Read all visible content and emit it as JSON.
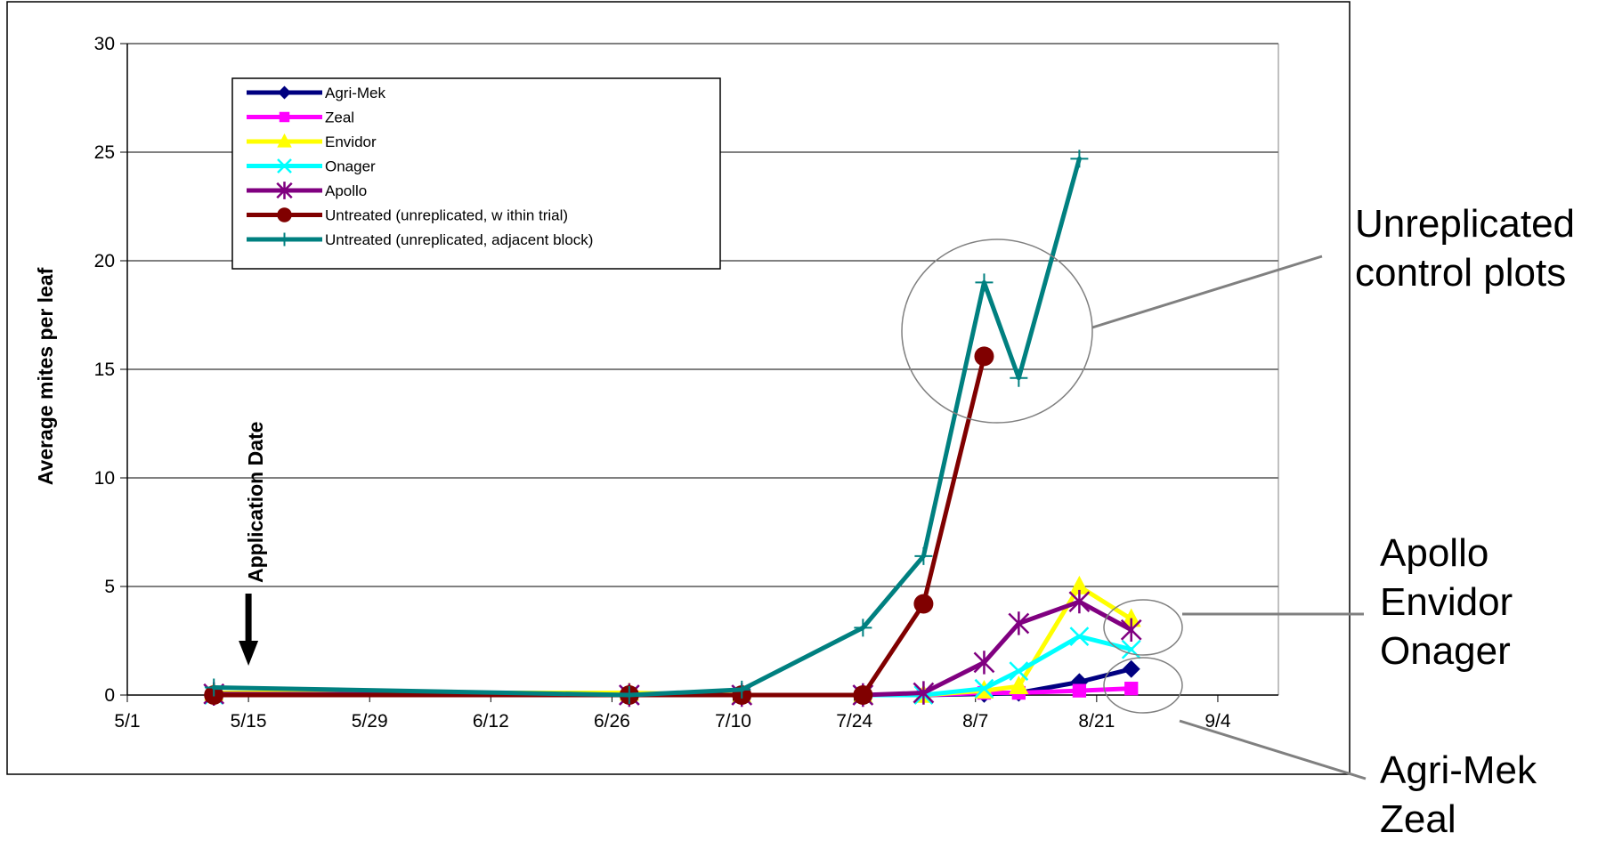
{
  "chart_data": {
    "type": "line",
    "title": "",
    "xlabel": "",
    "ylabel": "Average mites per leaf",
    "ylim": [
      0,
      30
    ],
    "yticks": [
      "0",
      "5",
      "10",
      "15",
      "20",
      "25",
      "30"
    ],
    "xticks": [
      "5/1",
      "5/15",
      "5/29",
      "6/12",
      "6/26",
      "7/10",
      "7/24",
      "8/7",
      "8/21",
      "9/4"
    ],
    "xtick_dates": [
      "2000-05-01",
      "2000-05-15",
      "2000-05-29",
      "2000-06-12",
      "2000-06-26",
      "2000-07-10",
      "2000-07-24",
      "2000-08-07",
      "2000-08-21",
      "2000-09-04"
    ],
    "xlim": [
      "2000-05-01",
      "2000-09-11"
    ],
    "grid": "horizontal",
    "legend_position": "top-left",
    "series": [
      {
        "name": "Agri-Mek",
        "color": "#000080",
        "marker": "diamond",
        "x": [
          "2000-05-11",
          "2000-06-28",
          "2000-07-11",
          "2000-07-25",
          "2000-08-01",
          "2000-08-08",
          "2000-08-12",
          "2000-08-19",
          "2000-08-25"
        ],
        "y": [
          0,
          0,
          0,
          0,
          0,
          0.05,
          0.1,
          0.6,
          1.2
        ]
      },
      {
        "name": "Zeal",
        "color": "#FF00FF",
        "marker": "square",
        "x": [
          "2000-05-11",
          "2000-06-28",
          "2000-07-11",
          "2000-07-25",
          "2000-08-01",
          "2000-08-08",
          "2000-08-12",
          "2000-08-19",
          "2000-08-25"
        ],
        "y": [
          0,
          0,
          0,
          0,
          0,
          0.1,
          0.1,
          0.2,
          0.3
        ]
      },
      {
        "name": "Envidor",
        "color": "#FFFF00",
        "marker": "triangle",
        "x": [
          "2000-05-11",
          "2000-06-28",
          "2000-07-11",
          "2000-07-25",
          "2000-08-01",
          "2000-08-08",
          "2000-08-12",
          "2000-08-19",
          "2000-08-25"
        ],
        "y": [
          0.1,
          0.1,
          0,
          0,
          0,
          0.2,
          0.4,
          5.0,
          3.5
        ]
      },
      {
        "name": "Onager",
        "color": "#00FFFF",
        "marker": "x",
        "x": [
          "2000-05-11",
          "2000-06-28",
          "2000-07-11",
          "2000-07-25",
          "2000-08-01",
          "2000-08-08",
          "2000-08-12",
          "2000-08-19",
          "2000-08-25"
        ],
        "y": [
          0,
          0,
          0,
          0,
          0,
          0.3,
          1.1,
          2.7,
          2.1
        ]
      },
      {
        "name": "Apollo",
        "color": "#800080",
        "marker": "asterisk",
        "x": [
          "2000-05-11",
          "2000-06-28",
          "2000-07-11",
          "2000-07-25",
          "2000-08-01",
          "2000-08-08",
          "2000-08-12",
          "2000-08-19",
          "2000-08-25"
        ],
        "y": [
          0.05,
          0,
          0,
          0,
          0.1,
          1.5,
          3.3,
          4.3,
          3.0
        ]
      },
      {
        "name": "Untreated (unreplicated, w ithin trial)",
        "color": "#800000",
        "marker": "circle",
        "x": [
          "2000-05-11",
          "2000-06-28",
          "2000-07-11",
          "2000-07-25",
          "2000-08-01",
          "2000-08-08"
        ],
        "y": [
          0,
          0,
          0,
          0,
          4.2,
          15.6
        ]
      },
      {
        "name": "Untreated (unreplicated, adjacent block)",
        "color": "#008080",
        "marker": "plus",
        "x": [
          "2000-05-11",
          "2000-06-28",
          "2000-07-11",
          "2000-07-25",
          "2000-08-01",
          "2000-08-08",
          "2000-08-12",
          "2000-08-19"
        ],
        "y": [
          0.35,
          0,
          0.25,
          3.1,
          6.4,
          19.0,
          14.6,
          24.7
        ]
      }
    ],
    "annotations": [
      {
        "text": "Application Date",
        "x": "2000-05-15",
        "arrow": "down"
      },
      {
        "text_lines": [
          "Unreplicated",
          "control plots"
        ],
        "target_series": [
          "Untreated (unreplicated, w ithin trial)",
          "Untreated (unreplicated, adjacent block)"
        ]
      },
      {
        "text_lines": [
          "Apollo",
          "Envidor",
          "Onager"
        ],
        "target_series": [
          "Apollo",
          "Envidor",
          "Onager"
        ]
      },
      {
        "text_lines": [
          "Agri-Mek",
          "Zeal"
        ],
        "target_series": [
          "Agri-Mek",
          "Zeal"
        ]
      }
    ]
  }
}
